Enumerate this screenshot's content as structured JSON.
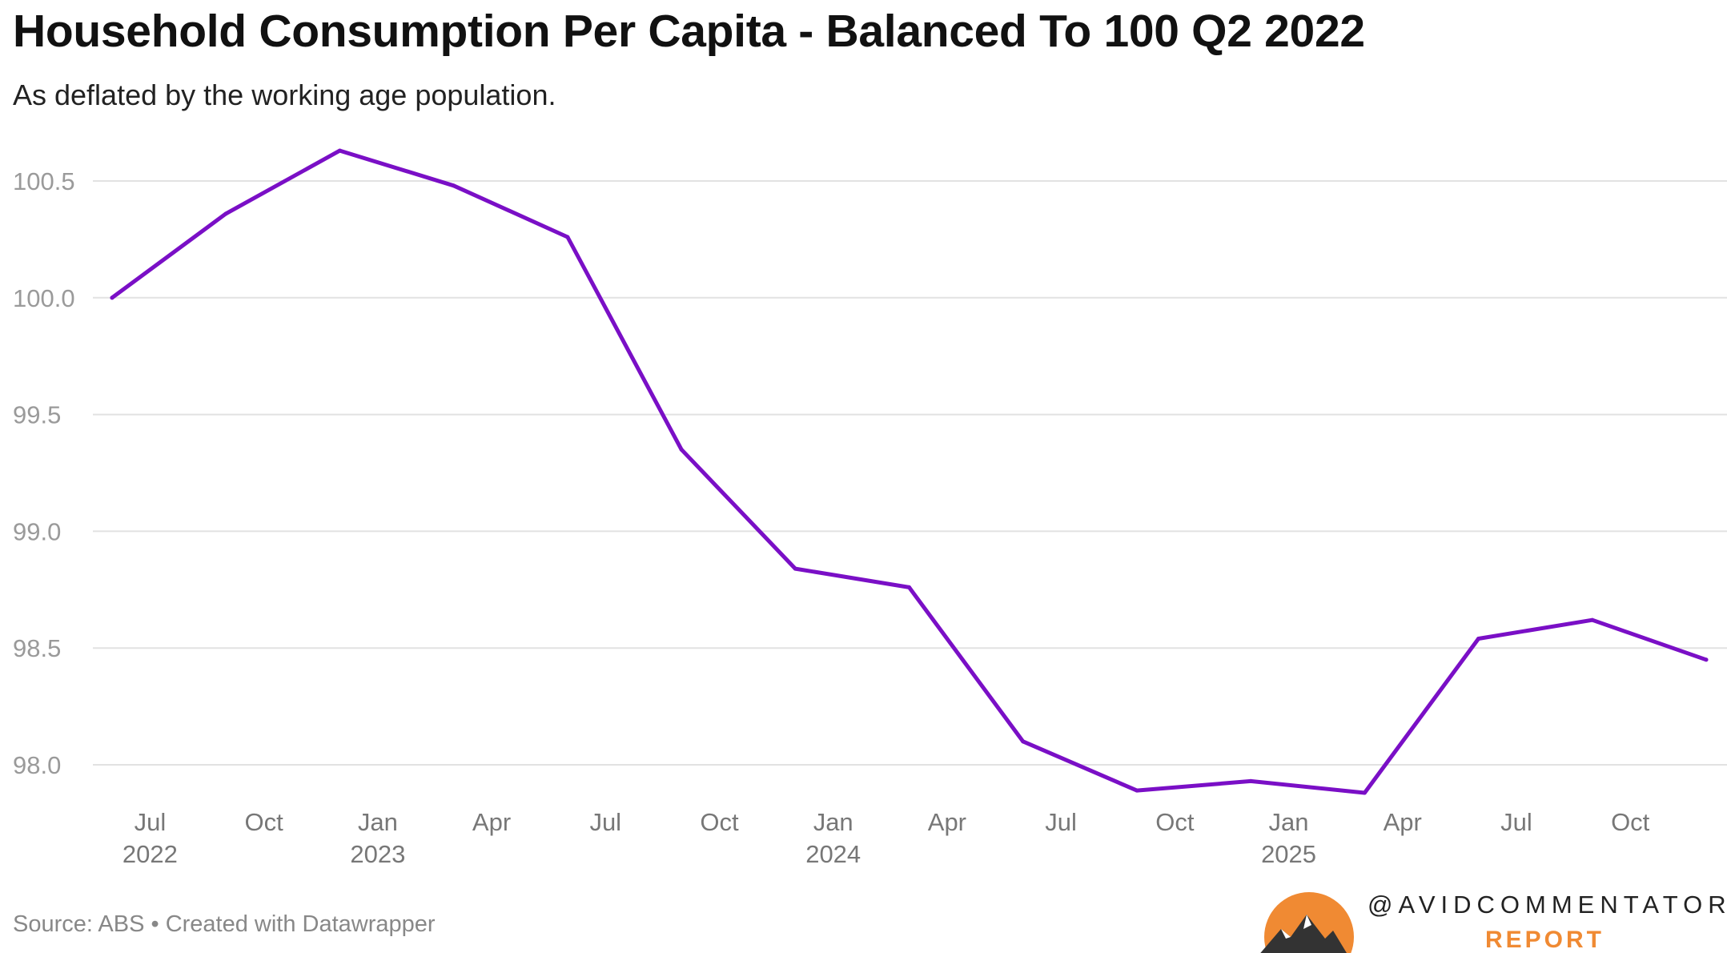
{
  "title": "Household Consumption Per Capita - Balanced To 100 Q2 2022",
  "subtitle": "As deflated by the working age population.",
  "source": "Source: ABS • Created with Datawrapper",
  "logo": {
    "handle": "@AVIDCOMMENTATOR",
    "word": "REPORT",
    "sun_color": "#f08a33",
    "mountain_color": "#333333"
  },
  "chart_data": {
    "type": "line",
    "title": "Household Consumption Per Capita - Balanced To 100 Q2 2022",
    "subtitle": "As deflated by the working age population.",
    "xlabel": "",
    "ylabel": "",
    "x": [
      "2022-06",
      "2022-09",
      "2022-12",
      "2023-03",
      "2023-06",
      "2023-09",
      "2023-12",
      "2024-03",
      "2024-06",
      "2024-09",
      "2024-12",
      "2025-03",
      "2025-06",
      "2025-09",
      "2025-12"
    ],
    "series": [
      {
        "values": [
          100.0,
          100.36,
          100.63,
          100.48,
          100.26,
          99.35,
          98.84,
          98.76,
          98.1,
          97.89,
          97.93,
          97.88,
          98.54,
          98.62,
          98.45
        ],
        "color": "#7a0fc6"
      }
    ],
    "ylim": [
      97.85,
      100.66
    ],
    "yticks": [
      "100.5",
      "100.0",
      "99.5",
      "99.0",
      "98.5",
      "98.0"
    ],
    "xticks": [
      {
        "month": "2022-07",
        "label": "Jul",
        "year": "2022"
      },
      {
        "month": "2022-10",
        "label": "Oct",
        "year": ""
      },
      {
        "month": "2023-01",
        "label": "Jan",
        "year": "2023"
      },
      {
        "month": "2023-04",
        "label": "Apr",
        "year": ""
      },
      {
        "month": "2023-07",
        "label": "Jul",
        "year": ""
      },
      {
        "month": "2023-10",
        "label": "Oct",
        "year": ""
      },
      {
        "month": "2024-01",
        "label": "Jan",
        "year": "2024"
      },
      {
        "month": "2024-04",
        "label": "Apr",
        "year": ""
      },
      {
        "month": "2024-07",
        "label": "Jul",
        "year": ""
      },
      {
        "month": "2024-10",
        "label": "Oct",
        "year": ""
      },
      {
        "month": "2025-01",
        "label": "Jan",
        "year": "2025"
      },
      {
        "month": "2025-04",
        "label": "Apr",
        "year": ""
      },
      {
        "month": "2025-07",
        "label": "Jul",
        "year": ""
      },
      {
        "month": "2025-10",
        "label": "Oct",
        "year": ""
      }
    ],
    "grid": true,
    "legend": "none"
  }
}
